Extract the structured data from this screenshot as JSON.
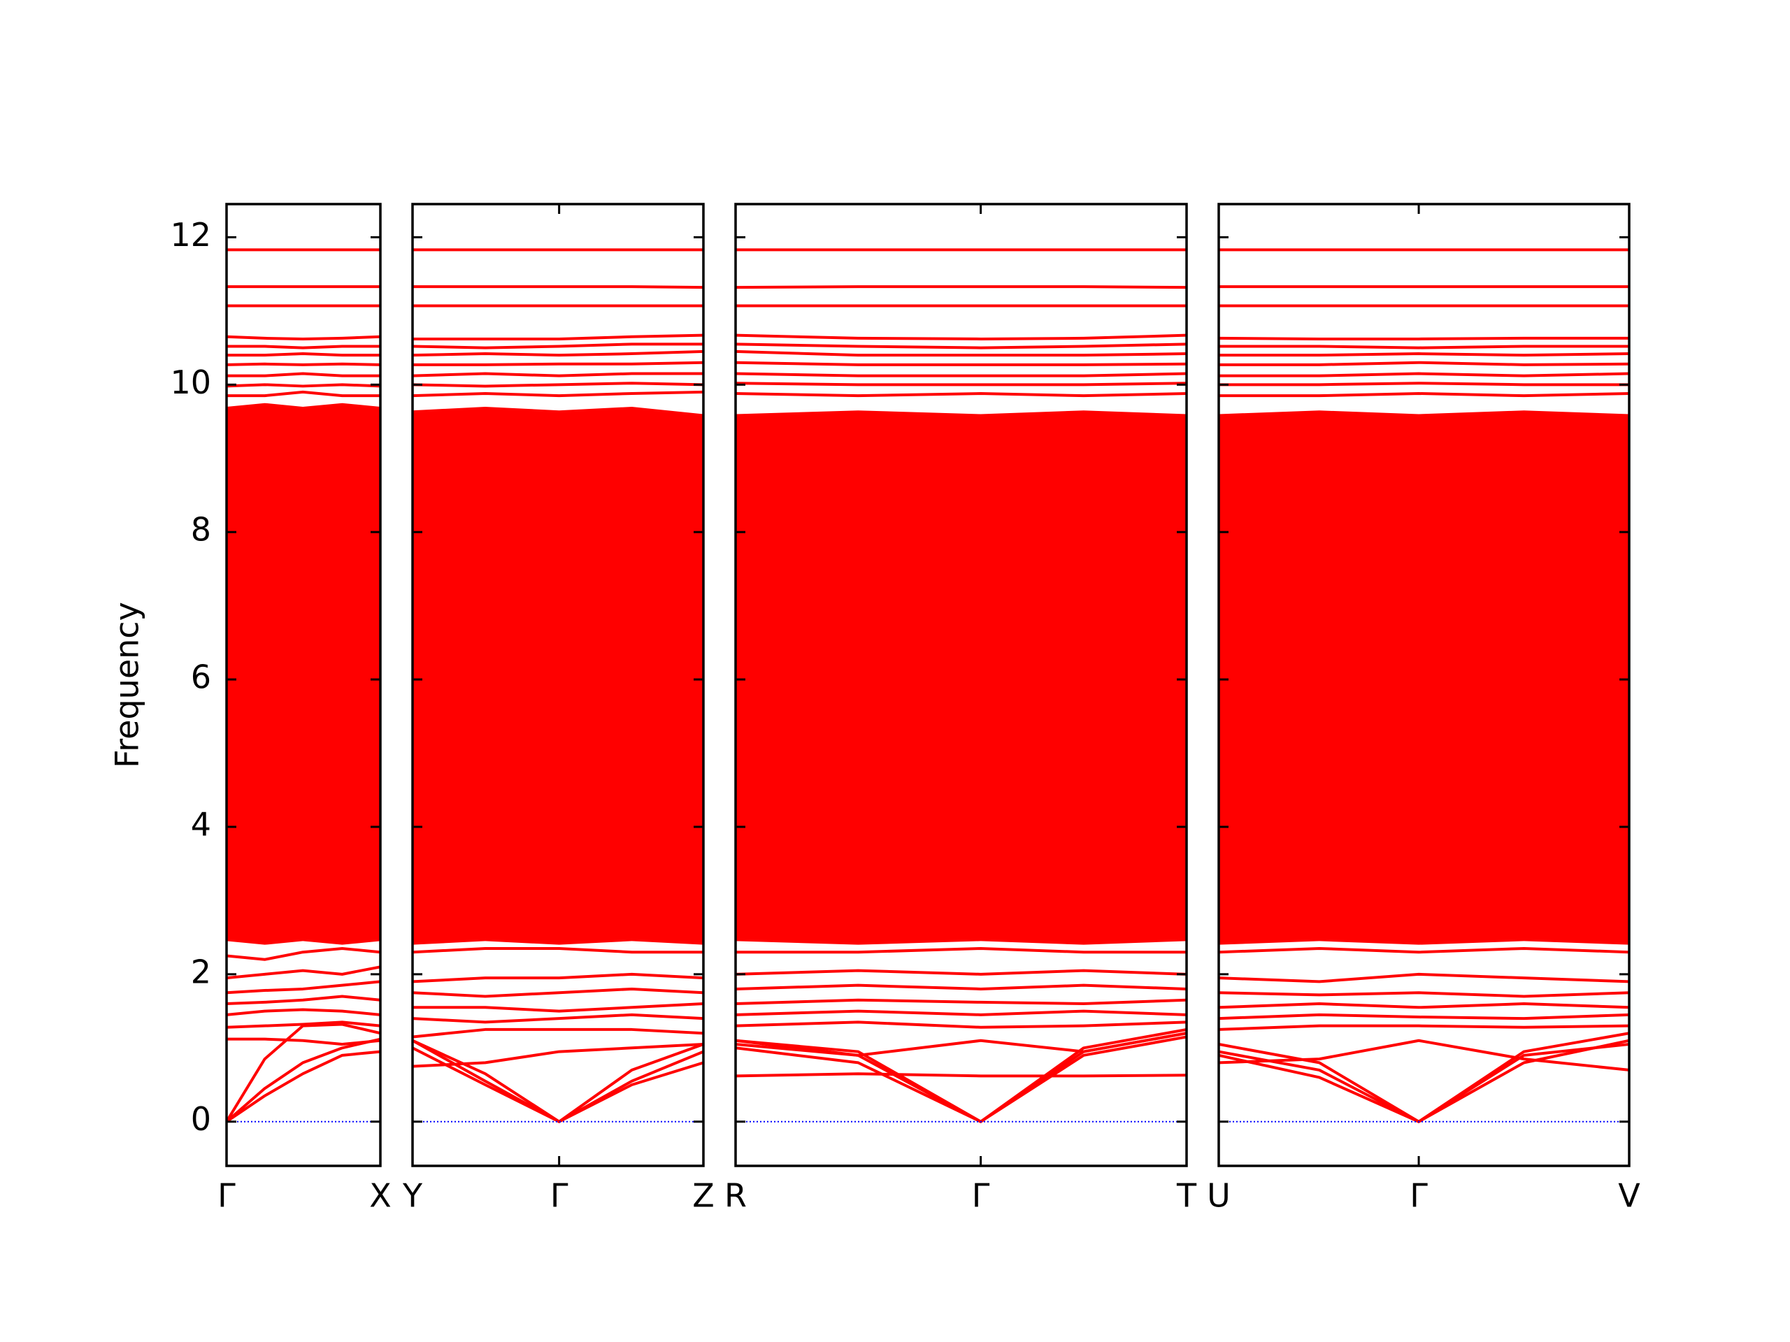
{
  "chart_data": [
    {
      "type": "line",
      "color": "#ff0000",
      "ylabel": "Frequency",
      "show_ytick_labels": true,
      "xlim": [
        0,
        1.33
      ],
      "xticks": [
        {
          "value": 0,
          "label": "Γ"
        },
        {
          "value": 1.33,
          "label": "X"
        }
      ],
      "ylim": [
        -0.6,
        12.45
      ],
      "yticks": [
        0,
        2,
        4,
        6,
        8,
        10,
        12
      ],
      "x": [
        0,
        0.33,
        0.66,
        1.0,
        1.33
      ],
      "fill": {
        "color": "#ff0000",
        "lower": [
          2.45,
          2.4,
          2.45,
          2.4,
          2.45
        ],
        "upper": [
          9.7,
          9.75,
          9.7,
          9.75,
          9.7
        ]
      },
      "zero_line": {
        "value": 0,
        "color": "#0000ff"
      },
      "series": [
        {
          "values": [
            0,
            0.45,
            0.8,
            1.0,
            1.12
          ]
        },
        {
          "values": [
            0,
            0.35,
            0.65,
            0.9,
            0.95
          ]
        },
        {
          "values": [
            0,
            0.85,
            1.3,
            1.32,
            1.2
          ]
        },
        {
          "values": [
            1.12,
            1.12,
            1.1,
            1.05,
            1.1
          ]
        },
        {
          "values": [
            1.28,
            1.3,
            1.32,
            1.35,
            1.3
          ]
        },
        {
          "values": [
            1.45,
            1.5,
            1.52,
            1.5,
            1.45
          ]
        },
        {
          "values": [
            1.6,
            1.62,
            1.65,
            1.7,
            1.65
          ]
        },
        {
          "values": [
            1.75,
            1.78,
            1.8,
            1.85,
            1.9
          ]
        },
        {
          "values": [
            1.95,
            2.0,
            2.05,
            2.0,
            2.1
          ]
        },
        {
          "values": [
            2.25,
            2.2,
            2.3,
            2.35,
            2.3
          ]
        },
        {
          "values": [
            9.85,
            9.85,
            9.9,
            9.85,
            9.85
          ]
        },
        {
          "values": [
            9.98,
            10.0,
            9.98,
            10.0,
            9.98
          ]
        },
        {
          "values": [
            10.12,
            10.12,
            10.15,
            10.12,
            10.12
          ]
        },
        {
          "values": [
            10.27,
            10.28,
            10.27,
            10.28,
            10.27
          ]
        },
        {
          "values": [
            10.4,
            10.4,
            10.42,
            10.4,
            10.4
          ]
        },
        {
          "values": [
            10.52,
            10.52,
            10.5,
            10.52,
            10.52
          ]
        },
        {
          "values": [
            10.65,
            10.63,
            10.62,
            10.63,
            10.65
          ]
        },
        {
          "values": [
            11.07,
            11.07,
            11.07,
            11.07,
            11.07
          ]
        },
        {
          "values": [
            11.33,
            11.33,
            11.33,
            11.33,
            11.33
          ]
        },
        {
          "values": [
            11.83,
            11.83,
            11.83,
            11.83,
            11.83
          ]
        }
      ]
    },
    {
      "type": "line",
      "color": "#ff0000",
      "show_ytick_labels": false,
      "xlim": [
        0,
        2.52
      ],
      "xticks": [
        {
          "value": 0,
          "label": "Y"
        },
        {
          "value": 1.27,
          "label": "Γ"
        },
        {
          "value": 2.52,
          "label": "Z"
        }
      ],
      "ylim": [
        -0.6,
        12.45
      ],
      "yticks": [
        0,
        2,
        4,
        6,
        8,
        10,
        12
      ],
      "x": [
        0,
        0.63,
        1.27,
        1.9,
        2.52
      ],
      "fill": {
        "color": "#ff0000",
        "lower": [
          2.4,
          2.45,
          2.4,
          2.45,
          2.4
        ],
        "upper": [
          9.65,
          9.7,
          9.65,
          9.7,
          9.6
        ]
      },
      "zero_line": {
        "value": 0,
        "color": "#0000ff"
      },
      "series": [
        {
          "values": [
            1.1,
            0.55,
            0,
            0.5,
            0.8
          ]
        },
        {
          "values": [
            1.0,
            0.5,
            0,
            0.55,
            0.95
          ]
        },
        {
          "values": [
            1.1,
            0.65,
            0,
            0.7,
            1.05
          ]
        },
        {
          "values": [
            0.75,
            0.8,
            0.95,
            1.0,
            1.05
          ]
        },
        {
          "values": [
            1.15,
            1.25,
            1.25,
            1.25,
            1.2
          ]
        },
        {
          "values": [
            1.4,
            1.35,
            1.4,
            1.45,
            1.4
          ]
        },
        {
          "values": [
            1.55,
            1.55,
            1.5,
            1.55,
            1.6
          ]
        },
        {
          "values": [
            1.75,
            1.7,
            1.75,
            1.8,
            1.75
          ]
        },
        {
          "values": [
            1.9,
            1.95,
            1.95,
            2.0,
            1.95
          ]
        },
        {
          "values": [
            2.3,
            2.35,
            2.35,
            2.3,
            2.3
          ]
        },
        {
          "values": [
            9.85,
            9.88,
            9.85,
            9.88,
            9.9
          ]
        },
        {
          "values": [
            10.0,
            9.98,
            10.0,
            10.02,
            10.0
          ]
        },
        {
          "values": [
            10.12,
            10.15,
            10.12,
            10.15,
            10.15
          ]
        },
        {
          "values": [
            10.27,
            10.27,
            10.28,
            10.28,
            10.3
          ]
        },
        {
          "values": [
            10.4,
            10.42,
            10.4,
            10.42,
            10.45
          ]
        },
        {
          "values": [
            10.52,
            10.5,
            10.52,
            10.55,
            10.55
          ]
        },
        {
          "values": [
            10.62,
            10.62,
            10.62,
            10.65,
            10.67
          ]
        },
        {
          "values": [
            11.07,
            11.07,
            11.07,
            11.07,
            11.07
          ]
        },
        {
          "values": [
            11.33,
            11.33,
            11.33,
            11.33,
            11.32
          ]
        },
        {
          "values": [
            11.83,
            11.83,
            11.83,
            11.83,
            11.83
          ]
        }
      ]
    },
    {
      "type": "line",
      "color": "#ff0000",
      "show_ytick_labels": false,
      "xlim": [
        0,
        3.9
      ],
      "xticks": [
        {
          "value": 0,
          "label": "R"
        },
        {
          "value": 2.12,
          "label": "Γ"
        },
        {
          "value": 3.9,
          "label": "T"
        }
      ],
      "ylim": [
        -0.6,
        12.45
      ],
      "yticks": [
        0,
        2,
        4,
        6,
        8,
        10,
        12
      ],
      "x": [
        0,
        1.06,
        2.12,
        3.01,
        3.9
      ],
      "fill": {
        "color": "#ff0000",
        "lower": [
          2.45,
          2.4,
          2.45,
          2.4,
          2.45
        ],
        "upper": [
          9.6,
          9.65,
          9.6,
          9.65,
          9.6
        ]
      },
      "zero_line": {
        "value": 0,
        "color": "#0000ff"
      },
      "series": [
        {
          "values": [
            1.05,
            0.9,
            0,
            0.9,
            1.15
          ]
        },
        {
          "values": [
            1.0,
            0.8,
            0,
            0.95,
            1.2
          ]
        },
        {
          "values": [
            1.1,
            0.95,
            0,
            1.0,
            1.25
          ]
        },
        {
          "values": [
            0.62,
            0.65,
            0.62,
            0.62,
            0.63
          ]
        },
        {
          "values": [
            1.1,
            0.9,
            1.1,
            0.95,
            1.2
          ]
        },
        {
          "values": [
            1.3,
            1.35,
            1.28,
            1.3,
            1.35
          ]
        },
        {
          "values": [
            1.45,
            1.5,
            1.45,
            1.5,
            1.45
          ]
        },
        {
          "values": [
            1.6,
            1.65,
            1.62,
            1.6,
            1.65
          ]
        },
        {
          "values": [
            1.8,
            1.85,
            1.8,
            1.85,
            1.8
          ]
        },
        {
          "values": [
            2.0,
            2.05,
            2.0,
            2.05,
            2.0
          ]
        },
        {
          "values": [
            2.3,
            2.3,
            2.35,
            2.3,
            2.3
          ]
        },
        {
          "values": [
            9.88,
            9.85,
            9.88,
            9.85,
            9.88
          ]
        },
        {
          "values": [
            10.02,
            10.0,
            10.0,
            10.0,
            10.02
          ]
        },
        {
          "values": [
            10.15,
            10.12,
            10.12,
            10.12,
            10.15
          ]
        },
        {
          "values": [
            10.3,
            10.27,
            10.27,
            10.27,
            10.28
          ]
        },
        {
          "values": [
            10.45,
            10.4,
            10.4,
            10.4,
            10.42
          ]
        },
        {
          "values": [
            10.55,
            10.52,
            10.5,
            10.52,
            10.55
          ]
        },
        {
          "values": [
            10.67,
            10.63,
            10.62,
            10.63,
            10.67
          ]
        },
        {
          "values": [
            11.07,
            11.07,
            11.07,
            11.07,
            11.07
          ]
        },
        {
          "values": [
            11.32,
            11.33,
            11.33,
            11.33,
            11.32
          ]
        },
        {
          "values": [
            11.83,
            11.83,
            11.83,
            11.83,
            11.83
          ]
        }
      ]
    },
    {
      "type": "line",
      "color": "#ff0000",
      "show_ytick_labels": false,
      "xlim": [
        0,
        3.55
      ],
      "xticks": [
        {
          "value": 0,
          "label": "U"
        },
        {
          "value": 1.73,
          "label": "Γ"
        },
        {
          "value": 3.55,
          "label": "V"
        }
      ],
      "ylim": [
        -0.6,
        12.45
      ],
      "yticks": [
        0,
        2,
        4,
        6,
        8,
        10,
        12
      ],
      "x": [
        0,
        0.87,
        1.73,
        2.64,
        3.55
      ],
      "fill": {
        "color": "#ff0000",
        "lower": [
          2.4,
          2.45,
          2.4,
          2.45,
          2.4
        ],
        "upper": [
          9.6,
          9.65,
          9.6,
          9.65,
          9.6
        ]
      },
      "zero_line": {
        "value": 0,
        "color": "#0000ff"
      },
      "series": [
        {
          "values": [
            0.9,
            0.6,
            0,
            0.8,
            1.1
          ]
        },
        {
          "values": [
            0.95,
            0.7,
            0,
            0.9,
            1.05
          ]
        },
        {
          "values": [
            1.05,
            0.8,
            0,
            0.95,
            1.2
          ]
        },
        {
          "values": [
            0.8,
            0.85,
            1.1,
            0.85,
            0.7
          ]
        },
        {
          "values": [
            1.25,
            1.3,
            1.3,
            1.28,
            1.3
          ]
        },
        {
          "values": [
            1.4,
            1.45,
            1.42,
            1.4,
            1.45
          ]
        },
        {
          "values": [
            1.55,
            1.6,
            1.55,
            1.6,
            1.55
          ]
        },
        {
          "values": [
            1.75,
            1.72,
            1.75,
            1.7,
            1.75
          ]
        },
        {
          "values": [
            1.95,
            1.9,
            2.0,
            1.95,
            1.9
          ]
        },
        {
          "values": [
            2.3,
            2.35,
            2.3,
            2.35,
            2.3
          ]
        },
        {
          "values": [
            9.85,
            9.85,
            9.88,
            9.85,
            9.88
          ]
        },
        {
          "values": [
            10.0,
            10.0,
            10.02,
            10.0,
            10.0
          ]
        },
        {
          "values": [
            10.12,
            10.12,
            10.15,
            10.12,
            10.15
          ]
        },
        {
          "values": [
            10.27,
            10.27,
            10.3,
            10.27,
            10.28
          ]
        },
        {
          "values": [
            10.4,
            10.4,
            10.42,
            10.4,
            10.42
          ]
        },
        {
          "values": [
            10.52,
            10.52,
            10.5,
            10.52,
            10.52
          ]
        },
        {
          "values": [
            10.63,
            10.62,
            10.62,
            10.63,
            10.63
          ]
        },
        {
          "values": [
            11.07,
            11.07,
            11.07,
            11.07,
            11.07
          ]
        },
        {
          "values": [
            11.33,
            11.33,
            11.33,
            11.33,
            11.33
          ]
        },
        {
          "values": [
            11.83,
            11.83,
            11.83,
            11.83,
            11.83
          ]
        }
      ]
    }
  ]
}
